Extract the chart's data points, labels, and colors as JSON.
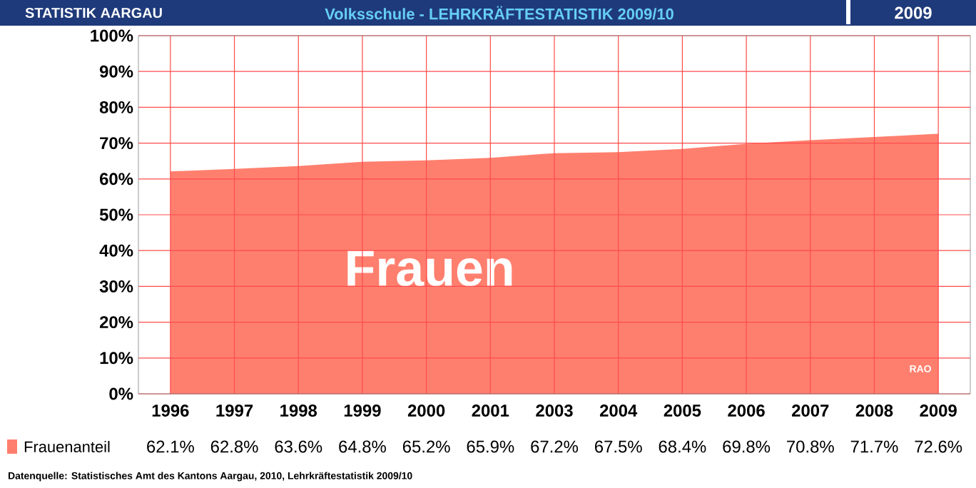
{
  "chart_data": {
    "type": "area",
    "title": "Volksschule - LEHRKRÄFTESTATISTIK 2009/10",
    "subtitle": "2009",
    "categories": [
      "1996",
      "1997",
      "1998",
      "1999",
      "2000",
      "2001",
      "2003",
      "2004",
      "2005",
      "2006",
      "2007",
      "2008",
      "2009"
    ],
    "series": [
      {
        "name": "Frauenanteil",
        "color": "#ff7f6e",
        "values": [
          62.1,
          62.8,
          63.6,
          64.8,
          65.2,
          65.9,
          67.2,
          67.5,
          68.4,
          69.8,
          70.8,
          71.7,
          72.6
        ],
        "value_labels": [
          "62.1%",
          "62.8%",
          "63.6%",
          "64.8%",
          "65.2%",
          "65.9%",
          "67.2%",
          "67.5%",
          "68.4%",
          "69.8%",
          "70.8%",
          "71.7%",
          "72.6%"
        ]
      }
    ],
    "ylim": [
      0,
      100
    ],
    "yticks": [
      {
        "value": 0,
        "label": "0%"
      },
      {
        "value": 10,
        "label": "10%"
      },
      {
        "value": 20,
        "label": "20%"
      },
      {
        "value": 30,
        "label": "30%"
      },
      {
        "value": 40,
        "label": "40%"
      },
      {
        "value": 50,
        "label": "50%"
      },
      {
        "value": 60,
        "label": "60%"
      },
      {
        "value": 70,
        "label": "70%"
      },
      {
        "value": 80,
        "label": "80%"
      },
      {
        "value": 90,
        "label": "90%"
      },
      {
        "value": 100,
        "label": "100%"
      }
    ],
    "grid": true,
    "legend": "bottom",
    "annotations": [
      "STATISTIK AARGAU",
      "Frauen",
      "RAO",
      "Datenquelle: Statistisches Amt des Kantons Aargau, 2010, Lehrkräftestatistik 2009/10"
    ]
  }
}
